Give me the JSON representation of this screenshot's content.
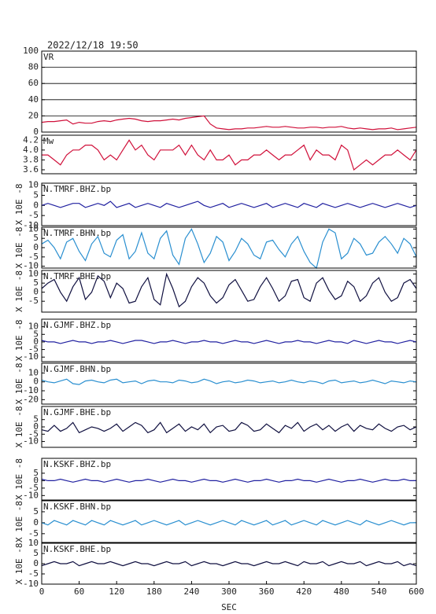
{
  "chart_data": {
    "type": "line",
    "title": "2022/12/18 19:50",
    "xlabel": "SEC",
    "x": [
      0,
      10,
      20,
      30,
      40,
      50,
      60,
      70,
      80,
      90,
      100,
      110,
      120,
      130,
      140,
      150,
      160,
      170,
      180,
      190,
      200,
      210,
      220,
      230,
      240,
      250,
      260,
      270,
      280,
      290,
      300,
      310,
      320,
      330,
      340,
      350,
      360,
      370,
      380,
      390,
      400,
      410,
      420,
      430,
      440,
      450,
      460,
      470,
      480,
      490,
      500,
      510,
      520,
      530,
      540,
      550,
      560,
      570,
      580,
      590,
      600
    ],
    "xlim": [
      0,
      600
    ],
    "xticks": [
      0,
      60,
      120,
      180,
      240,
      300,
      360,
      420,
      480,
      540,
      600
    ],
    "panels": [
      {
        "name": "VR",
        "color": "#d0103a",
        "grid": true,
        "ylim": [
          0,
          100
        ],
        "yticks": [
          0,
          20,
          40,
          60,
          80,
          100
        ],
        "values": [
          12,
          13,
          13,
          14,
          15,
          10,
          12,
          11,
          11,
          13,
          14,
          13,
          15,
          16,
          17,
          16,
          14,
          13,
          14,
          14,
          15,
          16,
          15,
          17,
          18,
          19,
          20,
          10,
          5,
          4,
          3,
          4,
          4,
          5,
          5,
          6,
          7,
          6,
          6,
          7,
          6,
          5,
          5,
          6,
          6,
          5,
          6,
          6,
          7,
          5,
          4,
          5,
          4,
          3,
          4,
          4,
          5,
          3,
          4,
          5,
          6
        ]
      },
      {
        "name": "Mw",
        "color": "#d0103a",
        "ylim": [
          3.52,
          4.3
        ],
        "yticks": [
          3.6,
          3.8,
          {
            "value": 4,
            "label": "4.0"
          },
          4.2
        ],
        "values": [
          3.9,
          3.9,
          3.8,
          3.7,
          3.9,
          4.0,
          4.0,
          4.1,
          4.1,
          4.0,
          3.8,
          3.9,
          3.8,
          4.0,
          4.2,
          4.0,
          4.1,
          3.9,
          3.8,
          4.0,
          4.0,
          4.0,
          4.1,
          3.9,
          4.1,
          3.9,
          3.8,
          4.0,
          3.8,
          3.8,
          3.9,
          3.7,
          3.8,
          3.8,
          3.9,
          3.9,
          4.0,
          3.9,
          3.8,
          3.9,
          3.9,
          4.0,
          4.1,
          3.8,
          4.0,
          3.9,
          3.9,
          3.8,
          4.1,
          4.0,
          3.6,
          3.7,
          3.8,
          3.7,
          3.8,
          3.9,
          3.9,
          4.0,
          3.9,
          3.8,
          4.0
        ]
      },
      {
        "name": "N.TMRF.BHZ.bp",
        "ylabel": "X 10E -8",
        "color": "#2020a0",
        "ylim": [
          -10,
          11
        ],
        "yticks": [
          -10,
          -5,
          0,
          5,
          10
        ],
        "values": [
          0,
          1,
          0,
          -1,
          0,
          1,
          1,
          -1,
          0,
          1,
          0,
          2,
          -1,
          0,
          1,
          -1,
          0,
          1,
          0,
          -1,
          1,
          0,
          -1,
          0,
          1,
          2,
          0,
          -1,
          0,
          1,
          -1,
          0,
          1,
          0,
          -1,
          0,
          1,
          -1,
          0,
          1,
          0,
          -1,
          1,
          0,
          -1,
          1,
          0,
          -1,
          0,
          1,
          0,
          -1,
          0,
          1,
          0,
          -1,
          0,
          1,
          0,
          -1,
          0
        ]
      },
      {
        "name": "N.TMRF.BHN.bp",
        "ylabel": "X 10E -8",
        "color": "#2a8fd0",
        "ylim": [
          -11,
          11
        ],
        "yticks": [
          -10,
          -5,
          0,
          5,
          10
        ],
        "values": [
          2,
          4,
          0,
          -6,
          3,
          5,
          -2,
          -7,
          2,
          6,
          -3,
          -5,
          4,
          7,
          -6,
          -2,
          8,
          -3,
          -6,
          5,
          9,
          -4,
          -9,
          5,
          10,
          2,
          -8,
          -3,
          6,
          3,
          -7,
          -2,
          5,
          2,
          -4,
          -6,
          3,
          4,
          -1,
          -5,
          2,
          6,
          -2,
          -8,
          -11,
          3,
          10,
          8,
          -6,
          -3,
          5,
          2,
          -4,
          -3,
          3,
          6,
          2,
          -3,
          5,
          2,
          -5
        ]
      },
      {
        "name": "N.TMRF.BHE.bp",
        "ylabel": "X 10E -8",
        "color": "#101040",
        "ylim": [
          -11,
          12
        ],
        "yticks": [
          -5,
          0,
          5,
          10
        ],
        "values": [
          2,
          5,
          7,
          0,
          -5,
          3,
          8,
          -4,
          0,
          9,
          6,
          -3,
          5,
          2,
          -6,
          -5,
          3,
          8,
          -4,
          -7,
          10,
          2,
          -8,
          -5,
          3,
          8,
          5,
          -2,
          -6,
          -3,
          4,
          7,
          1,
          -5,
          -4,
          3,
          8,
          2,
          -5,
          -2,
          6,
          7,
          -3,
          -5,
          5,
          8,
          1,
          -4,
          -2,
          6,
          3,
          -5,
          -2,
          5,
          8,
          0,
          -5,
          -3,
          5,
          7,
          2
        ]
      },
      {
        "name": "N.GJMF.BHZ.bp",
        "ylabel": "X 10E -8",
        "color": "#2020a0",
        "ylim": [
          -13,
          15
        ],
        "yticks": [
          -10,
          -5,
          0,
          5,
          10
        ],
        "values": [
          1,
          0,
          0,
          -1,
          0,
          1,
          0,
          0,
          -1,
          0,
          0,
          1,
          0,
          -1,
          0,
          1,
          1,
          0,
          -1,
          0,
          0,
          1,
          0,
          -1,
          0,
          0,
          1,
          0,
          0,
          -1,
          0,
          1,
          0,
          0,
          -1,
          0,
          1,
          0,
          -1,
          0,
          0,
          1,
          0,
          0,
          -1,
          0,
          1,
          0,
          0,
          -1,
          1,
          0,
          -1,
          0,
          1,
          0,
          0,
          -1,
          0,
          1,
          0
        ]
      },
      {
        "name": "N.GJMF.BHN.bp",
        "ylabel": "X 10E -8",
        "color": "#2a8fd0",
        "ylim": [
          -25,
          21
        ],
        "yticks": [
          -20,
          -10,
          0,
          10
        ],
        "values": [
          2,
          0,
          -1,
          1,
          3,
          -2,
          -3,
          1,
          2,
          0,
          -1,
          2,
          3,
          -1,
          0,
          1,
          -2,
          1,
          2,
          0,
          0,
          -1,
          2,
          1,
          -1,
          0,
          3,
          1,
          -2,
          0,
          1,
          -1,
          0,
          2,
          1,
          -1,
          0,
          1,
          -1,
          0,
          2,
          0,
          -1,
          1,
          0,
          -2,
          1,
          2,
          -1,
          0,
          1,
          -1,
          0,
          2,
          0,
          -2,
          1,
          0,
          -1,
          1,
          0
        ]
      },
      {
        "name": "N.GJMF.BHE.bp",
        "ylabel": "X 10E -8",
        "color": "#101040",
        "ylim": [
          -14,
          14
        ],
        "yticks": [
          -10,
          -5,
          0,
          5
        ],
        "values": [
          -2,
          -3,
          1,
          -3,
          -1,
          3,
          -4,
          -2,
          0,
          -1,
          -3,
          -1,
          2,
          -3,
          0,
          3,
          1,
          -4,
          -2,
          3,
          -4,
          -1,
          2,
          -3,
          0,
          -2,
          2,
          -4,
          0,
          1,
          -3,
          -2,
          3,
          1,
          -3,
          -2,
          2,
          -1,
          -4,
          1,
          -1,
          3,
          -3,
          0,
          2,
          -2,
          1,
          -3,
          0,
          2,
          -3,
          1,
          -1,
          -2,
          2,
          -1,
          -3,
          0,
          1,
          -2,
          0
        ]
      },
      {
        "name": "N.KSKF.BHZ.bp",
        "ylabel": "X 10E -8",
        "color": "#2020a0",
        "ylim": [
          -13,
          15
        ],
        "yticks": [
          -10,
          -5,
          0,
          5
        ],
        "values": [
          1,
          0,
          0,
          1,
          0,
          -1,
          0,
          1,
          0,
          0,
          -1,
          0,
          1,
          0,
          -1,
          0,
          0,
          1,
          0,
          -1,
          0,
          1,
          0,
          0,
          -1,
          0,
          1,
          0,
          0,
          -1,
          0,
          1,
          0,
          -1,
          0,
          0,
          1,
          0,
          -1,
          0,
          0,
          1,
          0,
          0,
          -1,
          0,
          1,
          0,
          -1,
          0,
          0,
          1,
          0,
          -1,
          0,
          1,
          0,
          0,
          1,
          0,
          0
        ]
      },
      {
        "name": "N.KSKF.BHN.bp",
        "ylabel": "X 10E -8",
        "color": "#2a8fd0",
        "ylim": [
          -9,
          10
        ],
        "yticks": [
          -5,
          0,
          5
        ],
        "values": [
          0,
          -1,
          1,
          0,
          -1,
          1,
          0,
          -1,
          1,
          0,
          -1,
          1,
          0,
          -1,
          0,
          1,
          -1,
          0,
          1,
          0,
          -1,
          0,
          1,
          -1,
          0,
          1,
          0,
          -1,
          0,
          1,
          0,
          -1,
          1,
          0,
          -1,
          0,
          1,
          -1,
          0,
          1,
          -1,
          0,
          1,
          0,
          -1,
          1,
          0,
          -1,
          0,
          1,
          0,
          -1,
          1,
          0,
          -1,
          0,
          1,
          0,
          -1,
          0,
          0
        ]
      },
      {
        "name": "N.KSKF.BHE.bp",
        "ylabel": "X 10E -8",
        "color": "#101040",
        "ylim": [
          -10,
          10
        ],
        "yticks": [
          -10,
          -5,
          0,
          5,
          10
        ],
        "values": [
          -1,
          0,
          1,
          0,
          0,
          1,
          -1,
          0,
          1,
          0,
          0,
          1,
          0,
          -1,
          0,
          1,
          0,
          0,
          -1,
          0,
          1,
          0,
          0,
          1,
          -1,
          0,
          1,
          0,
          0,
          -1,
          0,
          1,
          0,
          0,
          -1,
          0,
          1,
          0,
          0,
          1,
          0,
          -1,
          1,
          0,
          0,
          1,
          -1,
          0,
          1,
          0,
          0,
          1,
          -1,
          0,
          1,
          0,
          0,
          1,
          -1,
          0,
          -1
        ]
      }
    ]
  }
}
